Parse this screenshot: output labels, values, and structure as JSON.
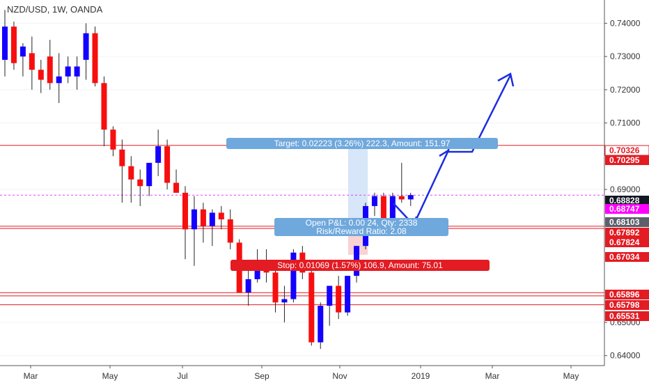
{
  "header": {
    "title": "NZD/USD, 1W, OANDA"
  },
  "colors": {
    "up": "#1400ff",
    "down": "#f70f0f",
    "wick": "#222222",
    "level_line": "#e31b23",
    "current_line": "#e040fb",
    "target_box": "#6fa8dc",
    "stop_box": "#e31b23",
    "arrow": "#1b2ce0",
    "axis_bg": "#ffffff",
    "grid": "#f0f3fa"
  },
  "chart_data": {
    "type": "candlestick",
    "title": "NZD/USD, 1W, OANDA",
    "ylim": [
      0.637,
      0.747
    ],
    "x_ticks": [
      "Mar",
      "May",
      "Jul",
      "Sep",
      "Nov",
      "2019",
      "Mar",
      "May"
    ],
    "y_ticks": [
      "0.74000",
      "0.73000",
      "0.72000",
      "0.71000",
      "0.69000",
      "0.65000",
      "0.64000"
    ],
    "candles": [
      {
        "o": 0.729,
        "h": 0.744,
        "l": 0.724,
        "c": 0.739
      },
      {
        "o": 0.739,
        "h": 0.7405,
        "l": 0.726,
        "c": 0.728
      },
      {
        "o": 0.73,
        "h": 0.734,
        "l": 0.724,
        "c": 0.733
      },
      {
        "o": 0.731,
        "h": 0.736,
        "l": 0.72,
        "c": 0.726
      },
      {
        "o": 0.726,
        "h": 0.729,
        "l": 0.719,
        "c": 0.723
      },
      {
        "o": 0.73,
        "h": 0.735,
        "l": 0.72,
        "c": 0.722
      },
      {
        "o": 0.722,
        "h": 0.731,
        "l": 0.716,
        "c": 0.724
      },
      {
        "o": 0.724,
        "h": 0.73,
        "l": 0.722,
        "c": 0.727
      },
      {
        "o": 0.724,
        "h": 0.73,
        "l": 0.72,
        "c": 0.727
      },
      {
        "o": 0.729,
        "h": 0.74,
        "l": 0.723,
        "c": 0.737
      },
      {
        "o": 0.737,
        "h": 0.739,
        "l": 0.721,
        "c": 0.722
      },
      {
        "o": 0.722,
        "h": 0.724,
        "l": 0.703,
        "c": 0.708
      },
      {
        "o": 0.708,
        "h": 0.709,
        "l": 0.7,
        "c": 0.702
      },
      {
        "o": 0.702,
        "h": 0.705,
        "l": 0.686,
        "c": 0.697
      },
      {
        "o": 0.697,
        "h": 0.7,
        "l": 0.686,
        "c": 0.693
      },
      {
        "o": 0.693,
        "h": 0.696,
        "l": 0.685,
        "c": 0.691
      },
      {
        "o": 0.691,
        "h": 0.698,
        "l": 0.688,
        "c": 0.698
      },
      {
        "o": 0.698,
        "h": 0.708,
        "l": 0.694,
        "c": 0.703
      },
      {
        "o": 0.703,
        "h": 0.705,
        "l": 0.69,
        "c": 0.692
      },
      {
        "o": 0.692,
        "h": 0.696,
        "l": 0.689,
        "c": 0.689
      },
      {
        "o": 0.689,
        "h": 0.691,
        "l": 0.669,
        "c": 0.678
      },
      {
        "o": 0.678,
        "h": 0.688,
        "l": 0.667,
        "c": 0.684
      },
      {
        "o": 0.684,
        "h": 0.686,
        "l": 0.674,
        "c": 0.679
      },
      {
        "o": 0.679,
        "h": 0.684,
        "l": 0.673,
        "c": 0.683
      },
      {
        "o": 0.683,
        "h": 0.685,
        "l": 0.678,
        "c": 0.681
      },
      {
        "o": 0.681,
        "h": 0.684,
        "l": 0.672,
        "c": 0.674
      },
      {
        "o": 0.674,
        "h": 0.675,
        "l": 0.659,
        "c": 0.659
      },
      {
        "o": 0.659,
        "h": 0.668,
        "l": 0.655,
        "c": 0.663
      },
      {
        "o": 0.663,
        "h": 0.672,
        "l": 0.662,
        "c": 0.668
      },
      {
        "o": 0.666,
        "h": 0.672,
        "l": 0.662,
        "c": 0.665
      },
      {
        "o": 0.665,
        "h": 0.666,
        "l": 0.653,
        "c": 0.656
      },
      {
        "o": 0.656,
        "h": 0.661,
        "l": 0.65,
        "c": 0.657
      },
      {
        "o": 0.657,
        "h": 0.672,
        "l": 0.656,
        "c": 0.671
      },
      {
        "o": 0.671,
        "h": 0.673,
        "l": 0.663,
        "c": 0.665
      },
      {
        "o": 0.665,
        "h": 0.666,
        "l": 0.643,
        "c": 0.644
      },
      {
        "o": 0.644,
        "h": 0.656,
        "l": 0.642,
        "c": 0.655
      },
      {
        "o": 0.655,
        "h": 0.661,
        "l": 0.649,
        "c": 0.661
      },
      {
        "o": 0.661,
        "h": 0.664,
        "l": 0.651,
        "c": 0.653
      },
      {
        "o": 0.653,
        "h": 0.664,
        "l": 0.652,
        "c": 0.664
      },
      {
        "o": 0.664,
        "h": 0.673,
        "l": 0.662,
        "c": 0.673
      },
      {
        "o": 0.673,
        "h": 0.686,
        "l": 0.672,
        "c": 0.685
      },
      {
        "o": 0.685,
        "h": 0.689,
        "l": 0.682,
        "c": 0.688
      },
      {
        "o": 0.688,
        "h": 0.689,
        "l": 0.679,
        "c": 0.679
      },
      {
        "o": 0.679,
        "h": 0.689,
        "l": 0.677,
        "c": 0.688
      },
      {
        "o": 0.688,
        "h": 0.698,
        "l": 0.686,
        "c": 0.687
      },
      {
        "o": 0.687,
        "h": 0.689,
        "l": 0.685,
        "c": 0.6883
      }
    ],
    "price_labels": [
      {
        "text": "0.70326",
        "value": 0.70326,
        "style": "white"
      },
      {
        "text": "0.70295",
        "value": 0.70295,
        "style": "red"
      },
      {
        "text": "0.68828",
        "value": 0.68828,
        "style": "dark"
      },
      {
        "text": "0.68747",
        "value": 0.68747,
        "style": "magenta"
      },
      {
        "text": "0.68103",
        "value": 0.68103,
        "style": "gray"
      },
      {
        "text": "0.67892",
        "value": 0.67892,
        "style": "red"
      },
      {
        "text": "0.67824",
        "value": 0.67824,
        "style": "red"
      },
      {
        "text": "0.67034",
        "value": 0.67034,
        "style": "red"
      },
      {
        "text": "0.65896",
        "value": 0.65896,
        "style": "red"
      },
      {
        "text": "0.65798",
        "value": 0.65798,
        "style": "red"
      },
      {
        "text": "0.65531",
        "value": 0.65531,
        "style": "red"
      }
    ],
    "levels": [
      0.70326,
      0.67892,
      0.67824,
      0.65896,
      0.65798,
      0.65531
    ],
    "current_price": 0.68828,
    "position": {
      "target_label": "Target: 0.02223 (3.26%) 222.3, Amount: 151.97",
      "open_label": "Open P&L: 0.00 24, Qty: 2338",
      "risk_label": "Risk/Reward Ratio: 2.08",
      "stop_label": "Stop: 0.01069 (1.57%) 106.9, Amount: 75.01",
      "entry": 0.68103,
      "target": 0.70326,
      "stop": 0.67034
    }
  }
}
